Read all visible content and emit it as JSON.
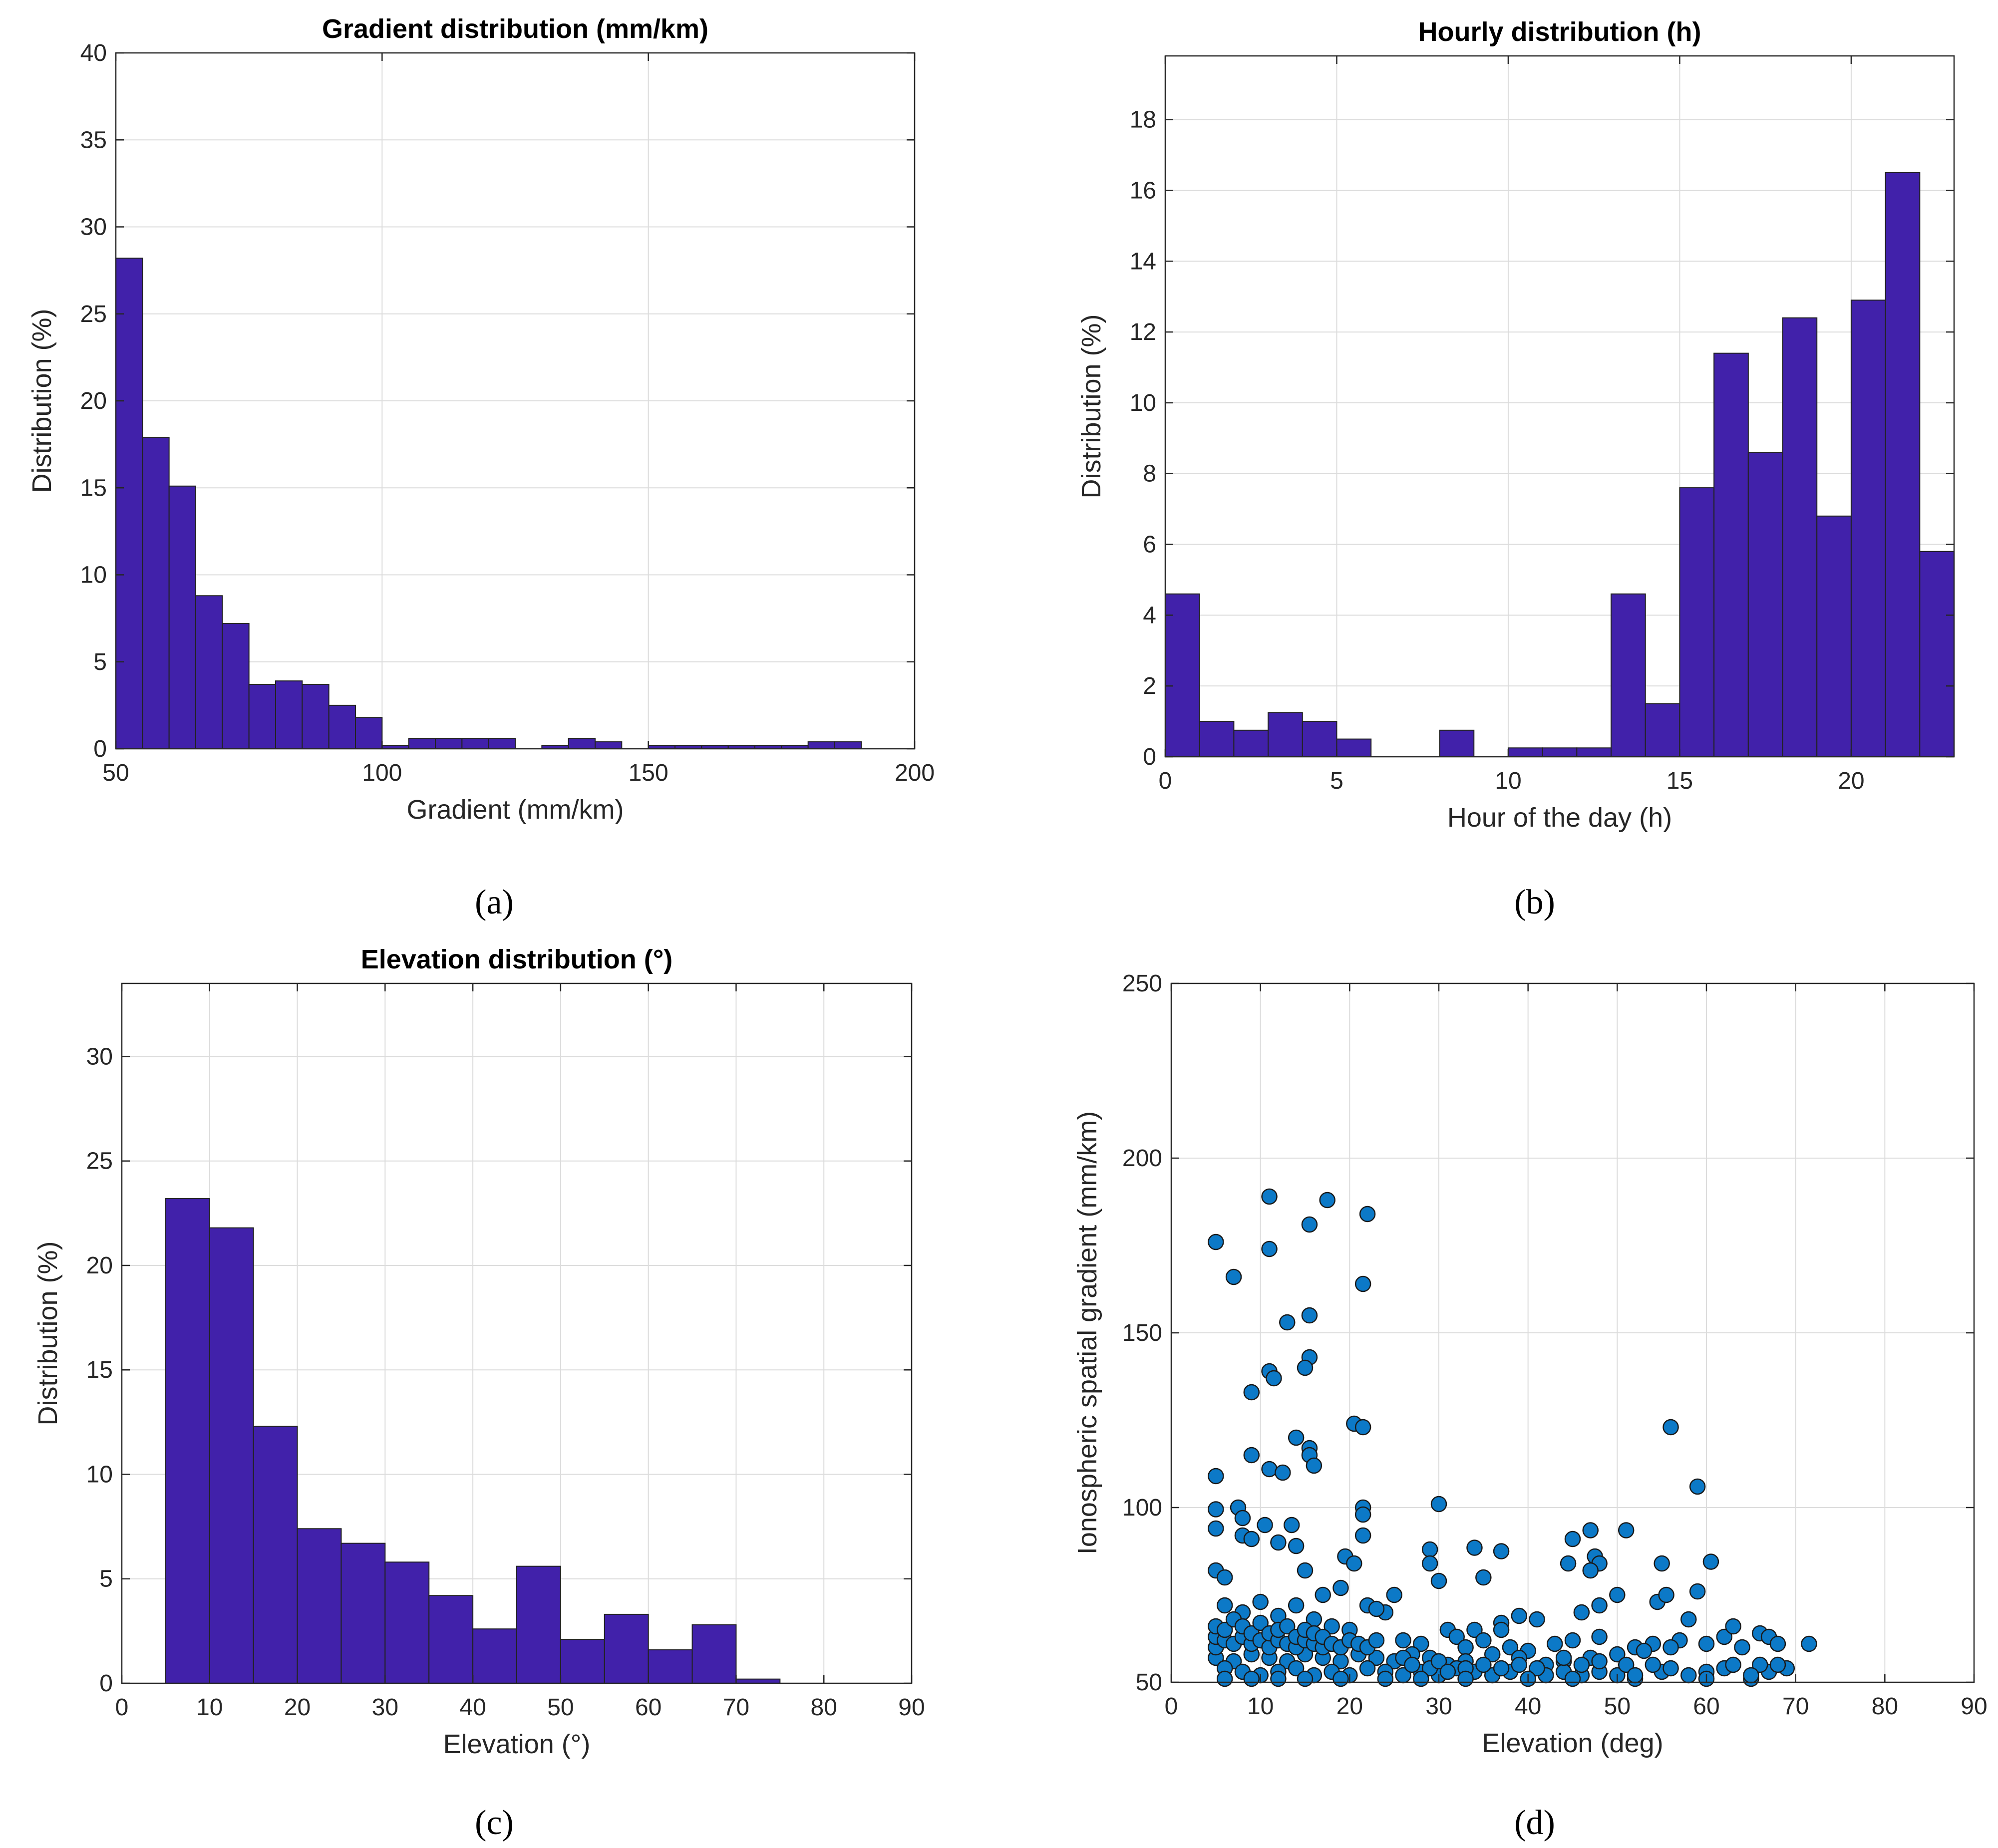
{
  "panels": {
    "a": "(a)",
    "b": "(b)",
    "c": "(c)",
    "d": "(d)"
  },
  "chart_data": [
    {
      "id": "a",
      "type": "bar",
      "title": "Gradient distribution (mm/km)",
      "xlabel": "Gradient (mm/km)",
      "ylabel": "Distribution (%)",
      "xlim": [
        50,
        200
      ],
      "ylim": [
        0,
        40
      ],
      "xticks": [
        50,
        100,
        150,
        200
      ],
      "yticks": [
        0,
        5,
        10,
        15,
        20,
        25,
        30,
        35,
        40
      ],
      "bin_edges_start": 50,
      "bin_width": 5,
      "values": [
        28.2,
        17.9,
        15.1,
        8.8,
        7.2,
        3.7,
        3.9,
        3.7,
        2.5,
        1.8,
        0.2,
        0.6,
        0.6,
        0.6,
        0.6,
        0.0,
        0.2,
        0.6,
        0.4,
        0.0,
        0.2,
        0.2,
        0.2,
        0.2,
        0.2,
        0.2,
        0.4,
        0.4,
        0.0,
        0.0
      ],
      "color": "#4121aa"
    },
    {
      "id": "b",
      "type": "bar",
      "title": "Hourly distribution (h)",
      "xlabel": "Hour of the day (h)",
      "ylabel": "Distribution (%)",
      "xlim": [
        0,
        23
      ],
      "ylim": [
        0,
        19.8
      ],
      "xticks": [
        0,
        5,
        10,
        15,
        20
      ],
      "yticks": [
        0,
        2,
        4,
        6,
        8,
        10,
        12,
        14,
        16,
        18
      ],
      "bin_edges_start": 0,
      "bin_width": 1,
      "values": [
        4.6,
        1.0,
        0.75,
        1.25,
        1.0,
        0.5,
        0.0,
        0.0,
        0.75,
        0.0,
        0.25,
        0.25,
        0.25,
        4.6,
        1.5,
        7.6,
        11.4,
        8.6,
        12.4,
        6.8,
        12.9,
        16.5,
        5.8
      ],
      "color": "#4121aa"
    },
    {
      "id": "c",
      "type": "bar",
      "title": "Elevation distribution (°)",
      "xlabel": "Elevation (°)",
      "ylabel": "Distribution (%)",
      "xlim": [
        0,
        90
      ],
      "ylim": [
        0,
        33.5
      ],
      "xticks": [
        0,
        10,
        20,
        30,
        40,
        50,
        60,
        70,
        80,
        90
      ],
      "yticks": [
        0,
        5,
        10,
        15,
        20,
        25,
        30
      ],
      "bin_edges_start": 5,
      "bin_width": 5,
      "values": [
        23.2,
        21.8,
        12.3,
        7.4,
        6.7,
        5.8,
        4.2,
        2.6,
        5.6,
        2.1,
        3.3,
        1.6,
        2.8,
        0.2,
        0.0,
        0.0,
        0.0
      ],
      "color": "#4121aa"
    },
    {
      "id": "d",
      "type": "scatter",
      "title": "",
      "xlabel": "Elevation (deg)",
      "ylabel": "Ionospheric spatial gradient (mm/km)",
      "xlim": [
        0,
        90
      ],
      "ylim": [
        50,
        250
      ],
      "xticks": [
        0,
        10,
        20,
        30,
        40,
        50,
        60,
        70,
        80,
        90
      ],
      "yticks": [
        50,
        100,
        150,
        200,
        250
      ],
      "color": "#0c79c7",
      "points": [
        [
          5,
          176
        ],
        [
          7,
          166
        ],
        [
          11,
          189
        ],
        [
          11,
          174
        ],
        [
          15.5,
          181
        ],
        [
          17.5,
          188
        ],
        [
          22,
          184
        ],
        [
          21.5,
          164
        ],
        [
          13,
          153
        ],
        [
          15.5,
          155
        ],
        [
          15.5,
          143
        ],
        [
          15,
          140
        ],
        [
          11,
          139
        ],
        [
          11.5,
          137
        ],
        [
          9,
          133
        ],
        [
          20.5,
          124
        ],
        [
          21.5,
          123
        ],
        [
          56,
          123
        ],
        [
          14,
          120
        ],
        [
          15.5,
          117
        ],
        [
          15.5,
          115
        ],
        [
          16,
          112
        ],
        [
          9,
          115
        ],
        [
          11,
          111
        ],
        [
          12.5,
          110
        ],
        [
          5,
          109
        ],
        [
          59,
          106
        ],
        [
          30,
          101
        ],
        [
          7.5,
          100
        ],
        [
          5,
          99.5
        ],
        [
          21.5,
          100
        ],
        [
          21.5,
          98
        ],
        [
          8,
          97
        ],
        [
          10.5,
          95
        ],
        [
          13.5,
          95
        ],
        [
          5,
          94
        ],
        [
          47,
          93.5
        ],
        [
          51,
          93.5
        ],
        [
          8,
          92
        ],
        [
          9,
          91
        ],
        [
          21.5,
          92
        ],
        [
          45,
          91
        ],
        [
          12,
          90
        ],
        [
          14,
          89
        ],
        [
          29,
          88
        ],
        [
          34,
          88.5
        ],
        [
          37,
          87.5
        ],
        [
          44.5,
          84
        ],
        [
          47.5,
          86
        ],
        [
          48,
          84
        ],
        [
          55,
          84
        ],
        [
          60.5,
          84.5
        ],
        [
          5,
          82
        ],
        [
          6,
          80
        ],
        [
          15,
          82
        ],
        [
          19.5,
          86
        ],
        [
          20.5,
          84
        ],
        [
          29,
          84
        ],
        [
          35,
          80
        ],
        [
          30,
          79
        ],
        [
          47,
          82
        ],
        [
          50,
          75
        ],
        [
          54.5,
          73
        ],
        [
          55.5,
          75
        ],
        [
          59,
          76
        ],
        [
          48,
          72
        ],
        [
          46,
          70
        ],
        [
          39,
          69
        ],
        [
          41,
          68
        ],
        [
          37,
          67
        ],
        [
          37,
          65
        ],
        [
          34,
          65
        ],
        [
          31,
          65
        ],
        [
          25,
          75
        ],
        [
          24,
          70
        ],
        [
          22,
          72
        ],
        [
          23,
          71
        ],
        [
          19,
          77
        ],
        [
          17,
          75
        ],
        [
          10,
          73
        ],
        [
          6,
          72
        ],
        [
          8,
          70
        ],
        [
          12,
          69
        ],
        [
          14,
          72
        ],
        [
          16,
          68
        ],
        [
          18,
          66
        ],
        [
          20,
          65
        ],
        [
          26,
          62
        ],
        [
          28,
          61
        ],
        [
          32,
          63
        ],
        [
          33,
          60
        ],
        [
          35,
          62
        ],
        [
          38,
          60
        ],
        [
          40,
          59
        ],
        [
          43,
          61
        ],
        [
          45,
          62
        ],
        [
          48,
          63
        ],
        [
          52,
          60
        ],
        [
          54,
          61
        ],
        [
          57,
          62
        ],
        [
          60,
          61
        ],
        [
          62,
          63
        ],
        [
          64,
          60
        ],
        [
          66,
          64
        ],
        [
          67,
          63
        ],
        [
          68,
          61
        ],
        [
          71.5,
          61
        ],
        [
          63,
          66
        ],
        [
          58,
          68
        ],
        [
          56,
          60
        ],
        [
          53,
          59
        ],
        [
          50,
          58
        ],
        [
          47,
          57
        ],
        [
          44,
          56
        ],
        [
          42,
          55
        ],
        [
          39,
          57
        ],
        [
          36,
          58
        ],
        [
          33,
          56
        ],
        [
          31,
          55
        ],
        [
          29,
          57
        ],
        [
          27,
          58
        ],
        [
          25,
          56
        ],
        [
          23,
          57
        ],
        [
          21,
          58
        ],
        [
          19,
          56
        ],
        [
          17,
          57
        ],
        [
          15,
          58
        ],
        [
          13,
          56
        ],
        [
          11,
          57
        ],
        [
          9,
          58
        ],
        [
          7,
          56
        ],
        [
          5,
          57
        ],
        [
          6,
          54
        ],
        [
          8,
          53
        ],
        [
          10,
          52
        ],
        [
          12,
          53
        ],
        [
          14,
          54
        ],
        [
          16,
          52
        ],
        [
          18,
          53
        ],
        [
          20,
          52
        ],
        [
          22,
          54
        ],
        [
          24,
          53
        ],
        [
          26,
          52
        ],
        [
          28,
          53
        ],
        [
          30,
          52
        ],
        [
          32,
          54
        ],
        [
          34,
          53
        ],
        [
          36,
          52
        ],
        [
          38,
          53
        ],
        [
          42,
          52
        ],
        [
          44,
          53
        ],
        [
          46,
          52
        ],
        [
          48,
          53
        ],
        [
          50,
          52
        ],
        [
          52,
          51
        ],
        [
          55,
          53
        ],
        [
          58,
          52
        ],
        [
          62,
          54
        ],
        [
          65,
          51
        ],
        [
          67,
          53
        ],
        [
          69,
          54
        ],
        [
          5,
          60
        ],
        [
          5,
          63
        ],
        [
          5,
          66
        ],
        [
          6,
          62
        ],
        [
          6,
          65
        ],
        [
          7,
          61
        ],
        [
          7,
          68
        ],
        [
          8,
          63
        ],
        [
          8,
          66
        ],
        [
          9,
          61
        ],
        [
          9,
          64
        ],
        [
          10,
          62
        ],
        [
          10,
          67
        ],
        [
          11,
          60
        ],
        [
          11,
          64
        ],
        [
          12,
          62
        ],
        [
          12,
          65
        ],
        [
          13,
          61
        ],
        [
          13,
          66
        ],
        [
          14,
          60
        ],
        [
          14,
          63
        ],
        [
          15,
          62
        ],
        [
          15,
          65
        ],
        [
          16,
          61
        ],
        [
          16,
          64
        ],
        [
          17,
          60
        ],
        [
          17,
          63
        ],
        [
          18,
          61
        ],
        [
          19,
          60
        ],
        [
          20,
          62
        ],
        [
          21,
          61
        ],
        [
          22,
          60
        ],
        [
          23,
          62
        ],
        [
          26,
          57
        ],
        [
          27,
          55
        ],
        [
          29,
          54
        ],
        [
          30,
          56
        ],
        [
          31,
          53
        ],
        [
          33,
          54
        ],
        [
          35,
          55
        ],
        [
          37,
          54
        ],
        [
          39,
          55
        ],
        [
          41,
          54
        ],
        [
          44,
          57
        ],
        [
          46,
          55
        ],
        [
          48,
          56
        ],
        [
          51,
          55
        ],
        [
          54,
          55
        ],
        [
          56,
          54
        ],
        [
          60,
          53
        ],
        [
          63,
          55
        ],
        [
          66,
          55
        ],
        [
          68,
          55
        ],
        [
          6,
          51
        ],
        [
          9,
          51
        ],
        [
          12,
          51
        ],
        [
          15,
          51
        ],
        [
          19,
          51
        ],
        [
          24,
          51
        ],
        [
          28,
          51
        ],
        [
          33,
          51
        ],
        [
          40,
          51
        ],
        [
          45,
          51
        ],
        [
          52,
          52
        ],
        [
          60,
          51
        ],
        [
          65,
          52
        ]
      ]
    }
  ]
}
